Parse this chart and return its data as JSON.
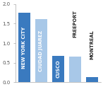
{
  "categories": [
    "NEW YORK CITY",
    "CIUDAD JUAREZ",
    "CUSCO",
    "FREEPORT",
    "MONTREAL"
  ],
  "values": [
    1.78,
    1.62,
    0.68,
    0.65,
    0.12
  ],
  "bar_colors": [
    "#3a7abf",
    "#a8c8e8",
    "#3a7abf",
    "#a8c8e8",
    "#3a7abf"
  ],
  "ylim": [
    0,
    2.0
  ],
  "yticks": [
    0.0,
    0.5,
    1.0,
    1.5,
    2.0
  ],
  "background_color": "#ffffff",
  "label_fontsize": 4.8,
  "white_label_bars": [
    "NEW YORK CITY",
    "CIUDAD JUAREZ",
    "CUSCO"
  ],
  "dark_label_bars": [
    "FREEPORT",
    "MONTREAL"
  ]
}
